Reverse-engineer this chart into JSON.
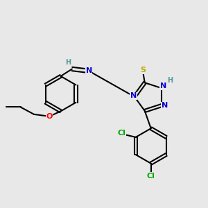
{
  "bg_color": "#e8e8e8",
  "bond_color": "#000000",
  "bond_lw": 1.5,
  "atom_colors": {
    "N": "#0000cc",
    "O": "#ff0000",
    "S": "#bbaa00",
    "Cl": "#00aa00",
    "H": "#559999",
    "C": "#000000"
  },
  "font_size": 8.0,
  "fig_bg": "#e8e8e8"
}
